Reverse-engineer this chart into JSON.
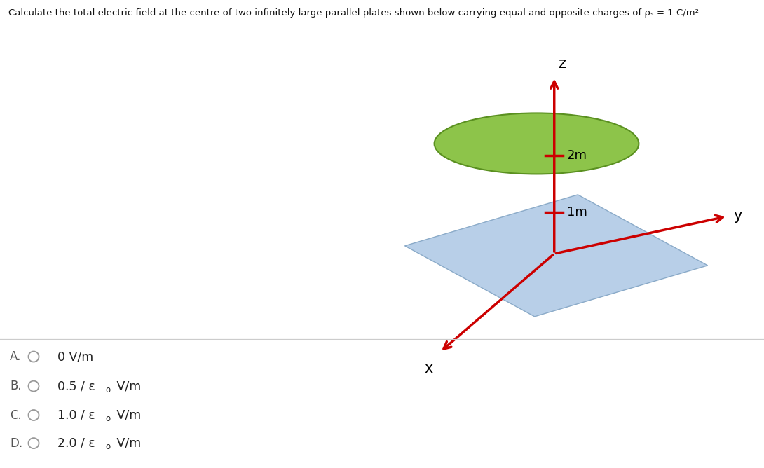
{
  "background_color": "#ffffff",
  "plate_blue_color": "#b8cfe8",
  "plate_blue_edge": "#8aaac8",
  "plate_green_color": "#8dc44a",
  "plate_green_edge": "#5a9020",
  "axis_color": "#cc0000",
  "label_color": "#000000",
  "label_2m": "2m",
  "label_1m": "1m",
  "label_z": "z",
  "label_y": "y",
  "label_x": "x",
  "title": "Calculate the total electric field at the centre of two infinitely large parallel plates shown below carrying equal and opposite charges of ",
  "title_rho": "ρ",
  "title_s": "s",
  "title_end": " = 1 C/m",
  "options_A": "0 V/m",
  "options_B_pre": "0.5 / ε",
  "options_C_pre": "1.0 / ε",
  "options_D_pre": "2.0 / ε",
  "options_sub": "o",
  "options_suf": " V/m",
  "fig_width": 10.9,
  "fig_height": 6.68,
  "dpi": 100
}
